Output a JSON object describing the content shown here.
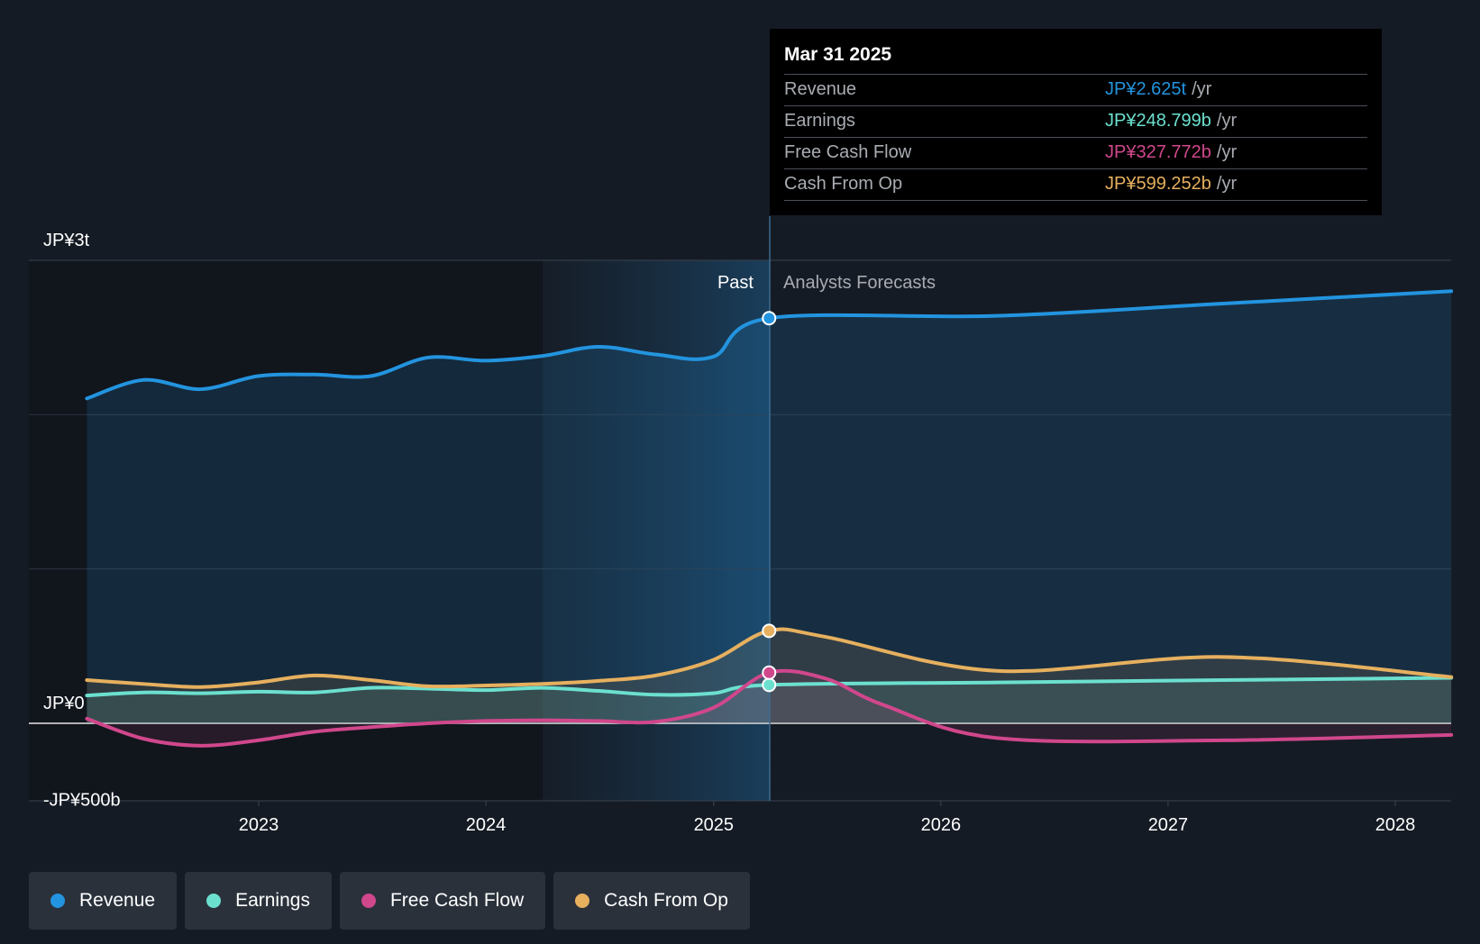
{
  "tooltip": {
    "date": "Mar 31 2025",
    "rows": [
      {
        "label": "Revenue",
        "value": "JP¥2.625t",
        "unit": "/yr",
        "color": "#2394df"
      },
      {
        "label": "Earnings",
        "value": "JP¥248.799b",
        "unit": "/yr",
        "color": "#6ce0cf"
      },
      {
        "label": "Free Cash Flow",
        "value": "JP¥327.772b",
        "unit": "/yr",
        "color": "#d0478c"
      },
      {
        "label": "Cash From Op",
        "value": "JP¥599.252b",
        "unit": "/yr",
        "color": "#e6b05f"
      }
    ]
  },
  "sections": {
    "past": "Past",
    "forecast": "Analysts Forecasts"
  },
  "legend": [
    {
      "label": "Revenue",
      "color": "#2394df"
    },
    {
      "label": "Earnings",
      "color": "#6ce0cf"
    },
    {
      "label": "Free Cash Flow",
      "color": "#d0478c"
    },
    {
      "label": "Cash From Op",
      "color": "#e6b05f"
    }
  ],
  "chart_data": {
    "type": "line",
    "y_axis_labels": [
      "JP¥3t",
      "JP¥0",
      "-JP¥500b"
    ],
    "x_tick_labels": [
      "2023",
      "2024",
      "2025",
      "2026",
      "2027",
      "2028"
    ],
    "ylim": [
      -500,
      3000
    ],
    "y_unit": "JP¥ billions",
    "grid": true,
    "past_end": "2025-03-31",
    "series": [
      {
        "name": "Revenue",
        "color": "#2394df",
        "points": [
          [
            "2022-03-31",
            2105
          ],
          [
            "2022-06-30",
            2225
          ],
          [
            "2022-09-30",
            2165
          ],
          [
            "2022-12-31",
            2250
          ],
          [
            "2023-03-31",
            2260
          ],
          [
            "2023-06-30",
            2250
          ],
          [
            "2023-09-30",
            2370
          ],
          [
            "2023-12-31",
            2350
          ],
          [
            "2024-03-31",
            2380
          ],
          [
            "2024-06-30",
            2440
          ],
          [
            "2024-09-30",
            2390
          ],
          [
            "2024-12-31",
            2375
          ],
          [
            "2025-03-31",
            2625
          ],
          [
            "2026-03-31",
            2640
          ],
          [
            "2027-03-31",
            2720
          ],
          [
            "2028-03-31",
            2800
          ]
        ]
      },
      {
        "name": "Earnings",
        "color": "#6ce0cf",
        "points": [
          [
            "2022-03-31",
            180
          ],
          [
            "2022-06-30",
            200
          ],
          [
            "2022-09-30",
            195
          ],
          [
            "2022-12-31",
            205
          ],
          [
            "2023-03-31",
            200
          ],
          [
            "2023-06-30",
            230
          ],
          [
            "2023-09-30",
            225
          ],
          [
            "2023-12-31",
            215
          ],
          [
            "2024-03-31",
            230
          ],
          [
            "2024-06-30",
            210
          ],
          [
            "2024-09-30",
            185
          ],
          [
            "2024-12-31",
            195
          ],
          [
            "2025-03-31",
            249
          ],
          [
            "2026-03-31",
            265
          ],
          [
            "2027-03-31",
            280
          ],
          [
            "2028-03-31",
            295
          ]
        ]
      },
      {
        "name": "Free Cash Flow",
        "color": "#d0478c",
        "points": [
          [
            "2022-03-31",
            30
          ],
          [
            "2022-06-30",
            -100
          ],
          [
            "2022-09-30",
            -145
          ],
          [
            "2022-12-31",
            -110
          ],
          [
            "2023-03-31",
            -55
          ],
          [
            "2023-06-30",
            -25
          ],
          [
            "2023-09-30",
            0
          ],
          [
            "2023-12-31",
            15
          ],
          [
            "2024-03-31",
            20
          ],
          [
            "2024-06-30",
            15
          ],
          [
            "2024-09-30",
            10
          ],
          [
            "2024-12-31",
            100
          ],
          [
            "2025-03-31",
            328
          ],
          [
            "2025-06-30",
            290
          ],
          [
            "2025-09-30",
            120
          ],
          [
            "2026-03-31",
            -95
          ],
          [
            "2027-03-31",
            -110
          ],
          [
            "2028-03-31",
            -75
          ]
        ]
      },
      {
        "name": "Cash From Op",
        "color": "#e6b05f",
        "points": [
          [
            "2022-03-31",
            280
          ],
          [
            "2022-06-30",
            255
          ],
          [
            "2022-09-30",
            235
          ],
          [
            "2022-12-31",
            265
          ],
          [
            "2023-03-31",
            310
          ],
          [
            "2023-06-30",
            280
          ],
          [
            "2023-09-30",
            240
          ],
          [
            "2023-12-31",
            245
          ],
          [
            "2024-03-31",
            255
          ],
          [
            "2024-06-30",
            275
          ],
          [
            "2024-09-30",
            310
          ],
          [
            "2024-12-31",
            410
          ],
          [
            "2025-03-31",
            599
          ],
          [
            "2025-06-30",
            560
          ],
          [
            "2026-03-31",
            340
          ],
          [
            "2027-03-31",
            430
          ],
          [
            "2028-03-31",
            300
          ]
        ]
      }
    ]
  }
}
